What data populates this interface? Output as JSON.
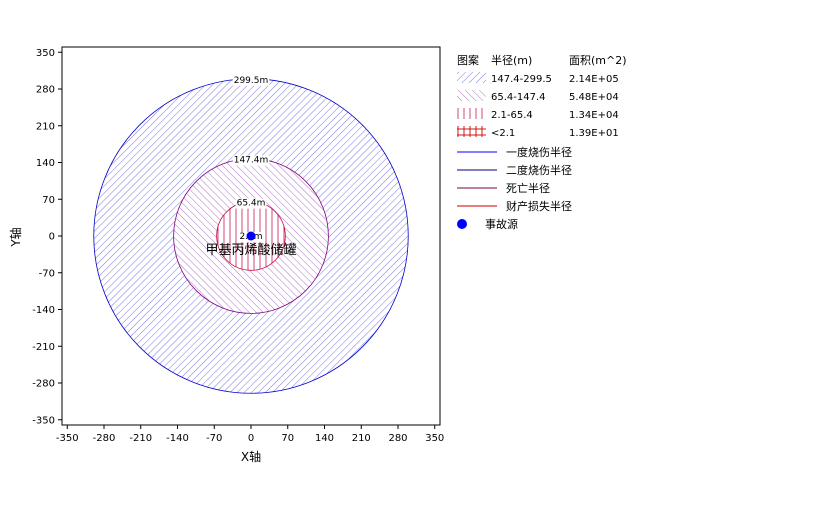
{
  "chart_data": {
    "type": "area",
    "xlabel": "X轴",
    "ylabel": "Y轴",
    "xlim": [
      -360,
      360
    ],
    "ylim": [
      -360,
      360
    ],
    "x_ticks": [
      -350,
      -280,
      -210,
      -140,
      -70,
      0,
      70,
      140,
      210,
      280,
      350
    ],
    "y_ticks": [
      350,
      280,
      210,
      140,
      70,
      0,
      -70,
      -140,
      -210,
      -280,
      -350
    ],
    "source_label": "甲基丙烯酸储罐",
    "source": {
      "x": 0,
      "y": 0,
      "color": "#0000ff"
    },
    "zones": [
      {
        "name": "147.4-299.5",
        "area": "2.14E+05",
        "radius": 299.5,
        "ring_label": "299.5m",
        "pattern": "diag-blue",
        "color": "#0000cc"
      },
      {
        "name": "65.4-147.4",
        "area": "5.48E+04",
        "radius": 147.4,
        "ring_label": "147.4m",
        "pattern": "diag-purple",
        "color": "#800080"
      },
      {
        "name": "2.1-65.4",
        "area": "1.34E+04",
        "radius": 65.4,
        "ring_label": "65.4m",
        "pattern": "vert-red",
        "color": "#cc0044"
      },
      {
        "name": "<2.1",
        "area": "1.39E+01",
        "radius": 2.1,
        "ring_label": "2.1m",
        "pattern": "cross-red",
        "color": "#cc0000"
      }
    ],
    "legend": {
      "header": [
        "图案",
        "半径(m)",
        "面积(m^2)"
      ],
      "lines": [
        {
          "name": "一度烧伤半径",
          "color": "#0000ff"
        },
        {
          "name": "二度烧伤半径",
          "color": "#000080"
        },
        {
          "name": "死亡半径",
          "color": "#800040"
        },
        {
          "name": "财产损失半径",
          "color": "#cc0000"
        }
      ],
      "marker": {
        "name": "事故源",
        "color": "#0000ff"
      }
    }
  }
}
